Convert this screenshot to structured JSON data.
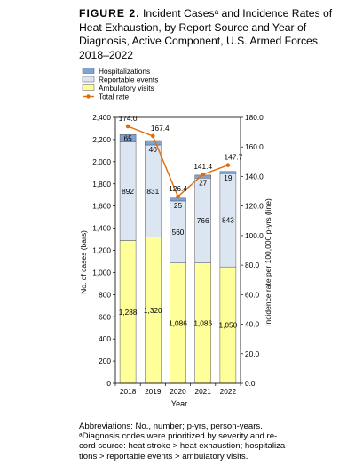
{
  "figure": {
    "label": "FIGURE 2.",
    "title": "Incident Casesᵃ and Incidence Rates of Heat Exhaustion, by Report Source and Year of Diagnosis, Active Component, U.S. Armed Forces, 2018–2022"
  },
  "chart_data": {
    "type": "bar",
    "stacked": true,
    "categories": [
      "2018",
      "2019",
      "2020",
      "2021",
      "2022"
    ],
    "series": [
      {
        "name": "Ambulatory visits",
        "color": "#ffff99",
        "values": [
          1288,
          1320,
          1086,
          1086,
          1050
        ]
      },
      {
        "name": "Reportable events",
        "color": "#dce6f2",
        "values": [
          892,
          831,
          560,
          766,
          843
        ]
      },
      {
        "name": "Hospitalizations",
        "color": "#7fa3d3",
        "values": [
          65,
          40,
          25,
          27,
          19
        ]
      }
    ],
    "line": {
      "name": "Total rate",
      "color": "#e26b0a",
      "values": [
        174.0,
        167.4,
        126.4,
        141.4,
        147.7
      ],
      "labels": [
        "174.0",
        "167.4",
        "126.4",
        "141.4",
        "147.7"
      ]
    },
    "legend_order": [
      "Hospitalizations",
      "Reportable events",
      "Ambulatory visits",
      "Total rate"
    ],
    "legend_position": "top-left",
    "xlabel": "Year",
    "ylabel": "No. of cases (bars)",
    "y2label": "Incidence rate per 100,000 p-yrs (line)",
    "ylim": [
      0,
      2400
    ],
    "y2lim": [
      0,
      180
    ],
    "yticks": [
      "0",
      "200",
      "400",
      "600",
      "800",
      "1,000",
      "1,200",
      "1,400",
      "1,600",
      "1,800",
      "2,000",
      "2,200",
      "2,400"
    ],
    "y2ticks": [
      "0.0",
      "20.0",
      "40.0",
      "60.0",
      "80.0",
      "100.0",
      "120.0",
      "140.0",
      "160.0",
      "180.0"
    ],
    "bar_labels": [
      [
        "1,288",
        "1,320",
        "1,086",
        "1,086",
        "1,050"
      ],
      [
        "892",
        "831",
        "560",
        "766",
        "843"
      ],
      [
        "65",
        "40",
        "25",
        "27",
        "19"
      ]
    ]
  },
  "footnotes": {
    "abbrev": "Abbreviations: No., number; p-yrs, person-years.",
    "note_1": "ᵃDiagnosis codes were prioritized by severity and re-",
    "note_2": "cord source: heat stroke > heat exhaustion; hospitaliza-",
    "note_3": "tions > reportable events > ambulatory visits."
  }
}
